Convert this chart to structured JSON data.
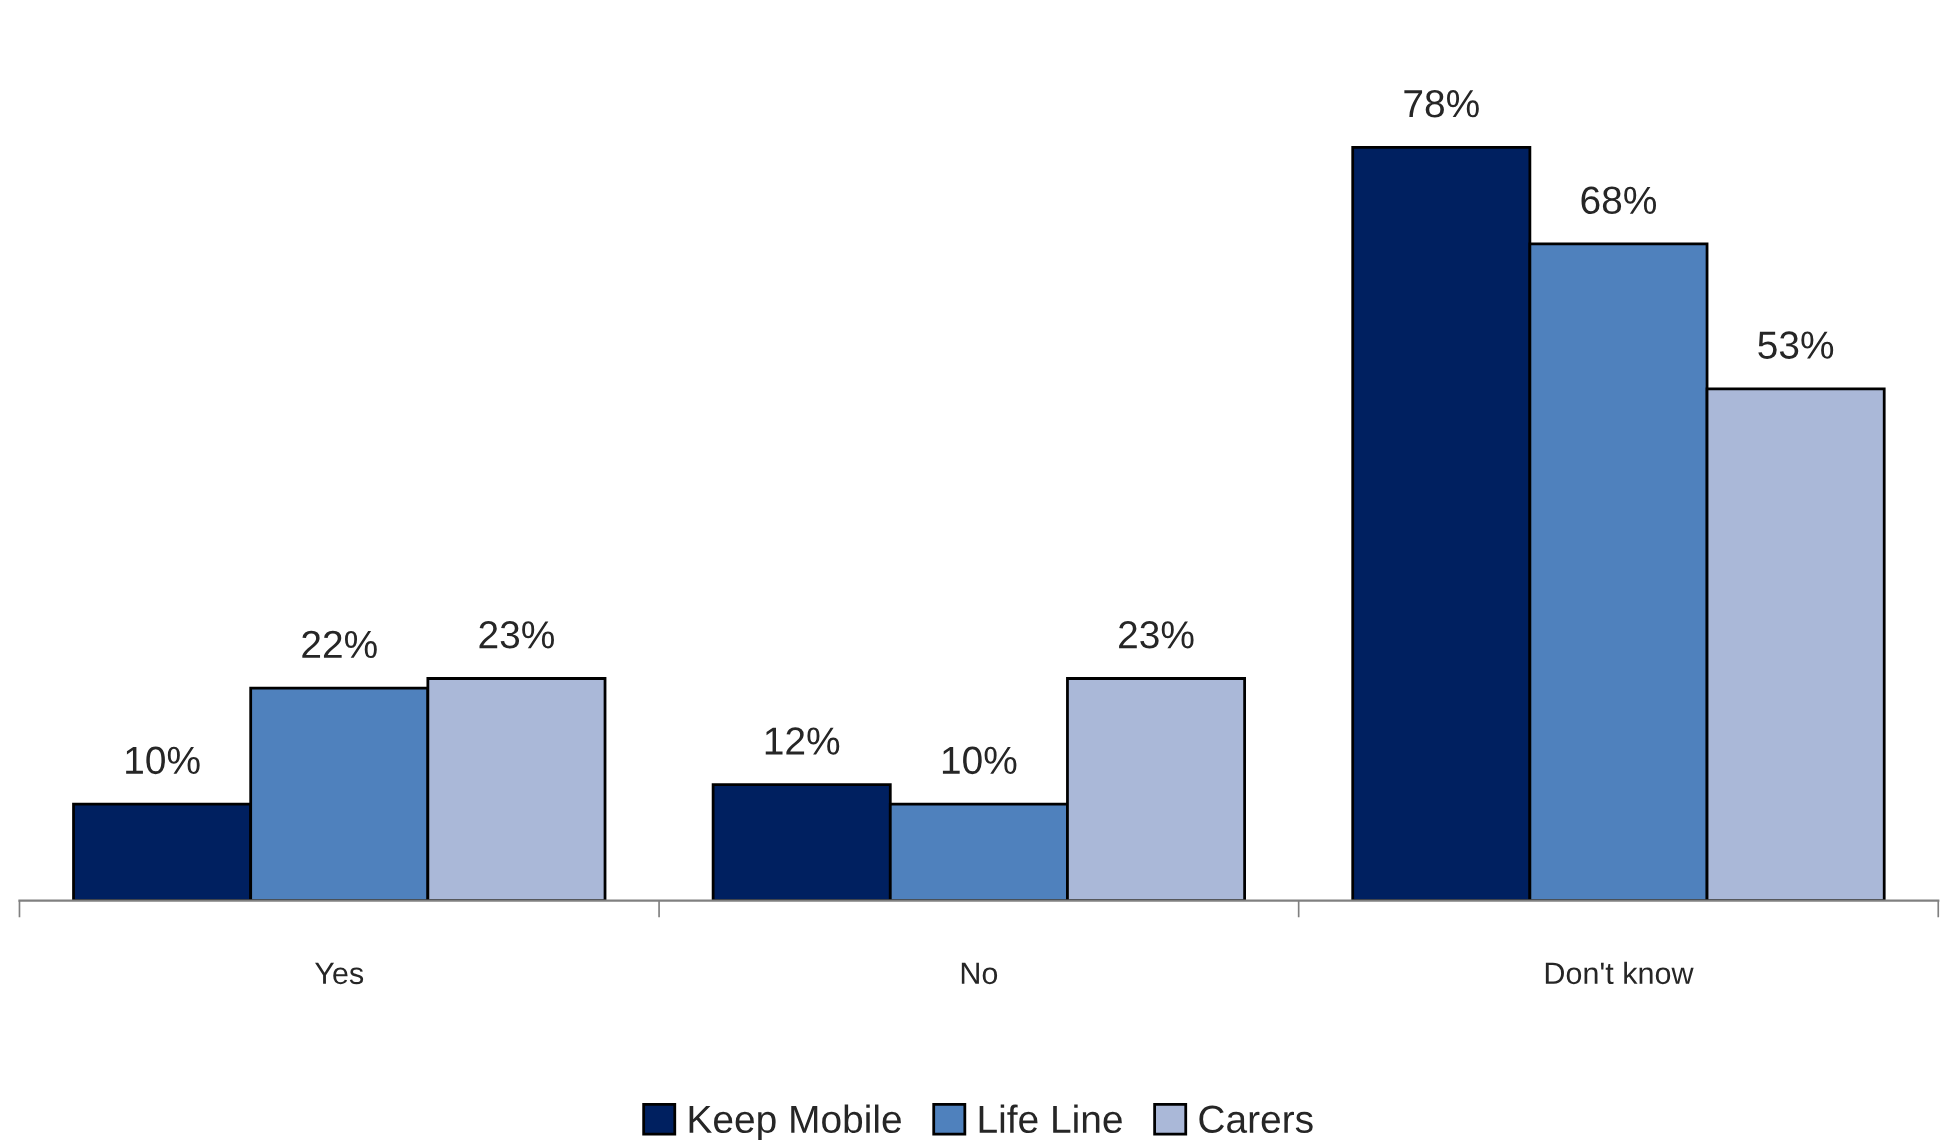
{
  "chart_data": {
    "type": "bar",
    "categories": [
      "Yes",
      "No",
      "Don't know"
    ],
    "series": [
      {
        "name": "Keep Mobile",
        "color": "#002060",
        "values": [
          10,
          12,
          78
        ],
        "value_labels": [
          "10%",
          "12%",
          "78%"
        ]
      },
      {
        "name": "Life Line",
        "color": "#4f81bd",
        "values": [
          22,
          10,
          68
        ],
        "value_labels": [
          "22%",
          "10%",
          "68%"
        ]
      },
      {
        "name": "Carers",
        "color": "#aab8d8",
        "values": [
          23,
          23,
          53
        ],
        "value_labels": [
          "23%",
          "23%",
          "53%"
        ]
      }
    ],
    "tick_labels": "x",
    "grid": false,
    "legend": "bottom"
  }
}
